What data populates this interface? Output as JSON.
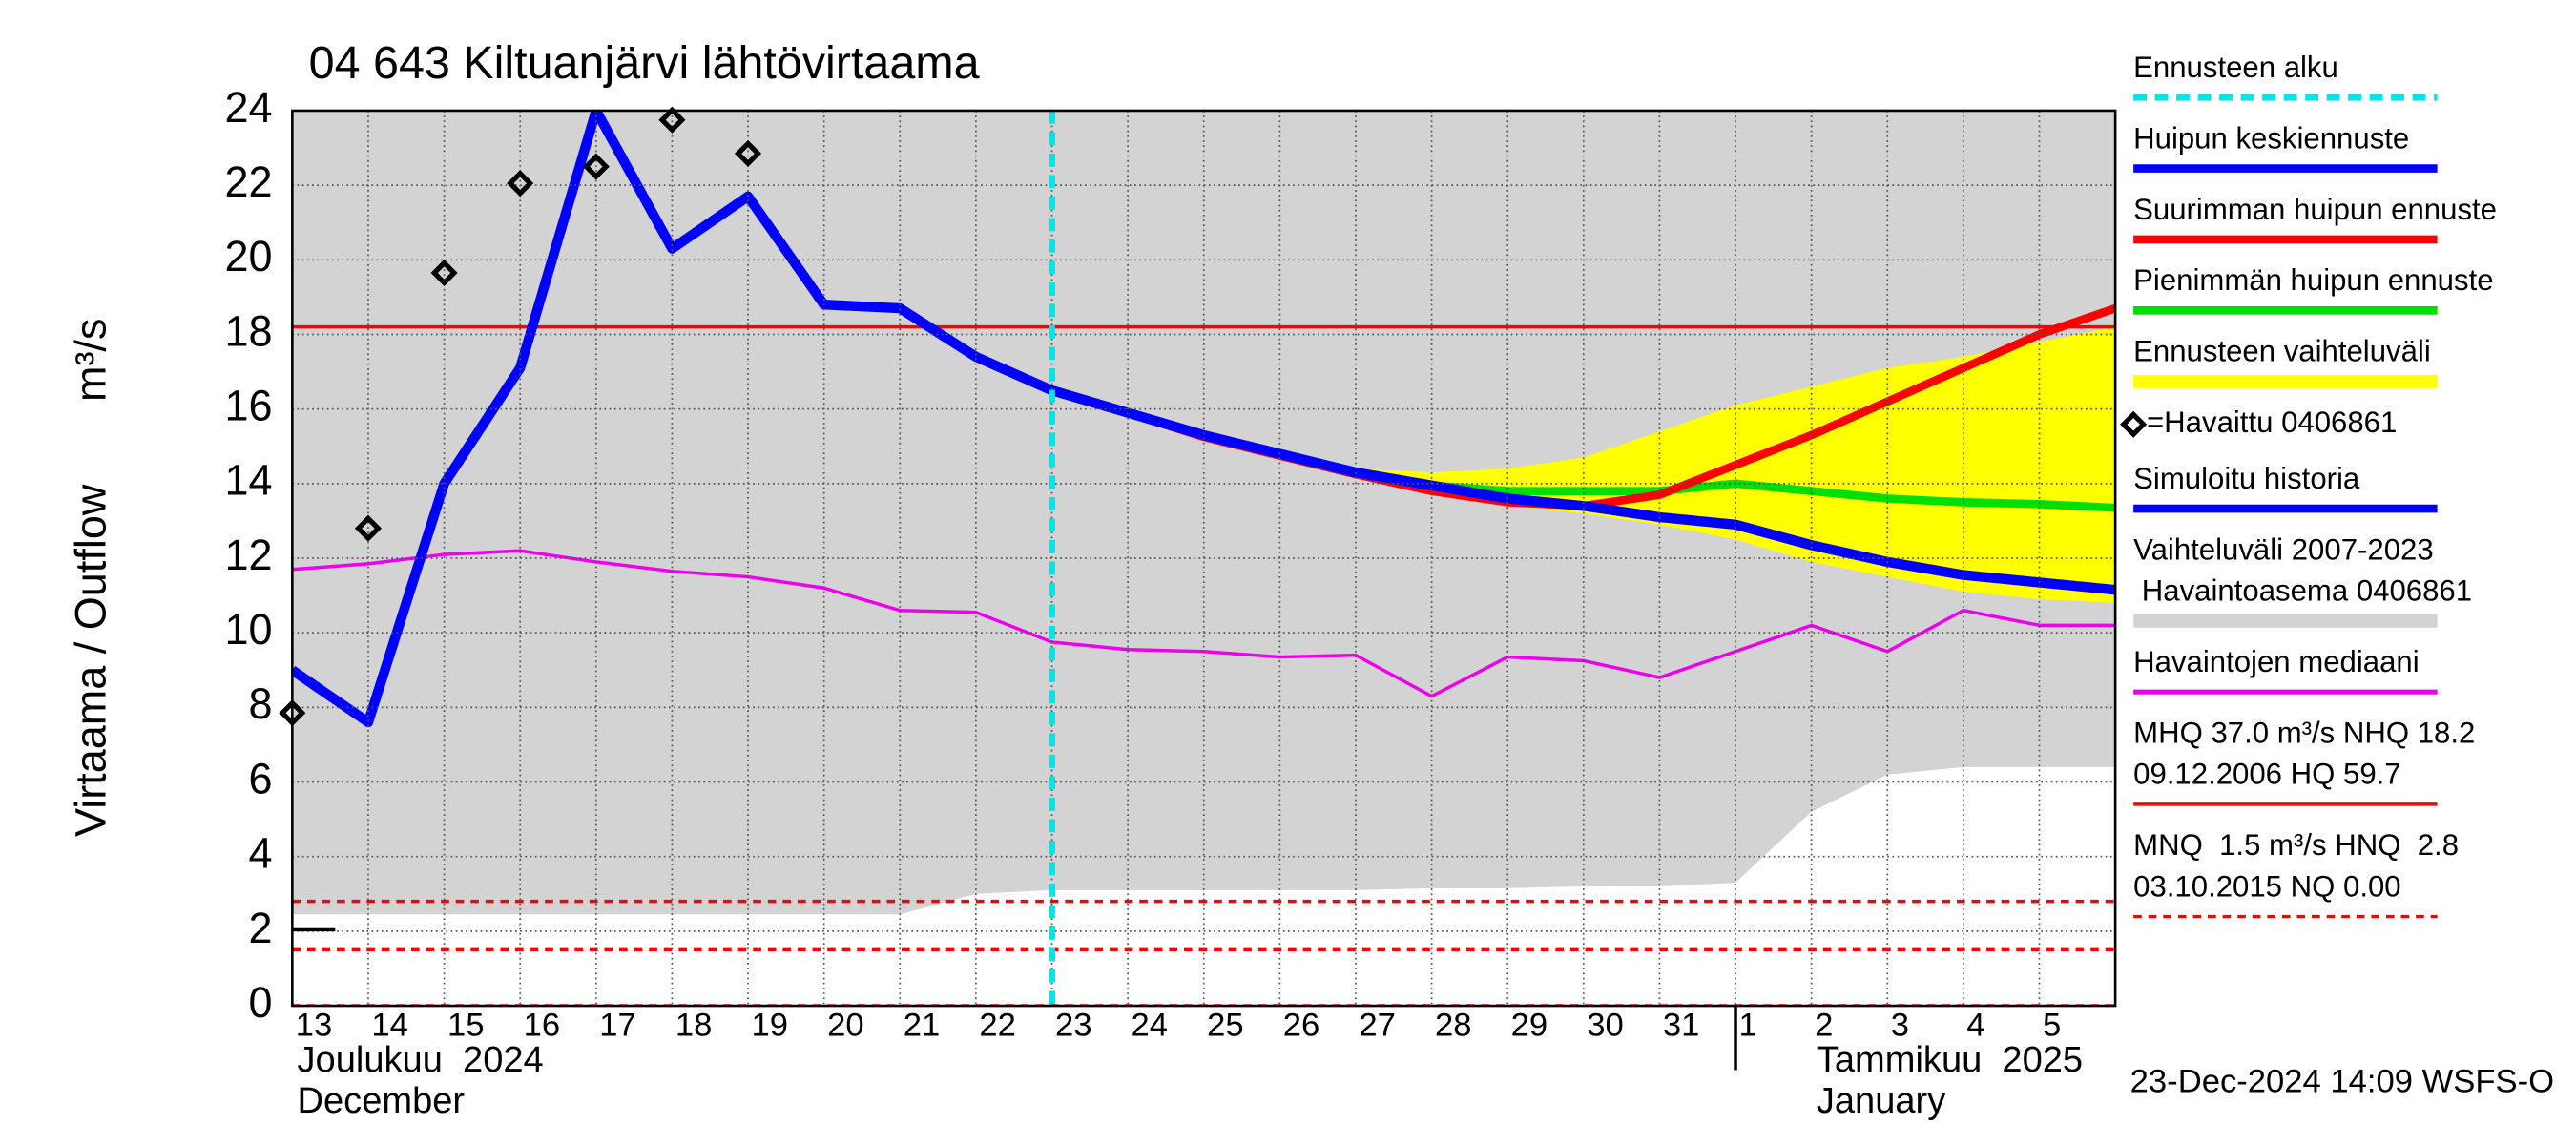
{
  "chart_data": {
    "type": "line",
    "title": "04 643 Kiltuanjärvi lähtövirtaama",
    "y_label": "Virtaama / Outflow",
    "y_unit": "m³/s",
    "categories": [
      "13",
      "14",
      "15",
      "16",
      "17",
      "18",
      "19",
      "20",
      "21",
      "22",
      "23",
      "24",
      "25",
      "26",
      "27",
      "28",
      "29",
      "30",
      "31",
      "1",
      "2",
      "3",
      "4",
      "5",
      null
    ],
    "month_labels": [
      [
        "Joulukuu  2024",
        "December"
      ],
      [
        "Tammikuu  2025",
        "January"
      ]
    ],
    "ylim": [
      0,
      24
    ],
    "yticks": [
      0,
      2,
      4,
      6,
      8,
      10,
      12,
      14,
      16,
      18,
      20,
      22,
      24
    ],
    "grid": true,
    "forecast_start": {
      "name": "Ennusteen alku",
      "color": "#00e5e5",
      "category": "23"
    },
    "series": [
      {
        "name": "Huipun keskiennuste",
        "kind": "line",
        "color": "#0000ff",
        "width": 6,
        "values": [
          null,
          null,
          null,
          null,
          null,
          null,
          null,
          null,
          null,
          null,
          16.5,
          15.9,
          15.3,
          14.8,
          14.3,
          13.95,
          13.6,
          13.4,
          13.1,
          12.9,
          12.35,
          11.9,
          11.55,
          11.35,
          11.15
        ]
      },
      {
        "name": "Suurimman huipun ennuste",
        "kind": "line",
        "color": "#ff0000",
        "width": 5,
        "values": [
          null,
          null,
          null,
          null,
          null,
          null,
          null,
          null,
          null,
          null,
          16.5,
          15.9,
          15.25,
          14.75,
          14.25,
          13.8,
          13.5,
          13.4,
          13.7,
          14.5,
          15.3,
          16.2,
          17.1,
          18.0,
          18.7
        ]
      },
      {
        "name": "Pienimmän huipun ennuste",
        "kind": "line",
        "color": "#00e000",
        "width": 5,
        "values": [
          null,
          null,
          null,
          null,
          null,
          null,
          null,
          null,
          null,
          null,
          16.5,
          15.9,
          15.3,
          14.8,
          14.3,
          13.95,
          13.8,
          13.8,
          13.8,
          14.0,
          13.8,
          13.6,
          13.5,
          13.45,
          13.35
        ]
      },
      {
        "name": "Ennusteen vaihteluväli",
        "kind": "band",
        "color": "#ffff00",
        "upper": [
          null,
          null,
          null,
          null,
          null,
          null,
          null,
          null,
          null,
          null,
          null,
          null,
          null,
          14.8,
          14.4,
          14.3,
          14.4,
          14.7,
          15.4,
          16.1,
          16.6,
          17.1,
          17.4,
          17.8,
          18.2
        ],
        "lower": [
          null,
          null,
          null,
          null,
          null,
          null,
          null,
          null,
          null,
          null,
          null,
          null,
          null,
          14.8,
          14.2,
          13.8,
          13.4,
          13.2,
          12.9,
          12.5,
          11.9,
          11.5,
          11.1,
          10.9,
          10.8
        ]
      },
      {
        "name": "=Havaittu 0406861",
        "kind": "markers",
        "color": "#000000",
        "values": [
          7.85,
          12.8,
          19.65,
          22.05,
          22.5,
          23.75,
          22.85,
          null,
          null,
          null,
          null,
          null,
          null,
          null,
          null,
          null,
          null,
          null,
          null,
          null,
          null,
          null,
          null,
          null,
          null
        ]
      },
      {
        "name": "Simuloitu historia",
        "kind": "line",
        "color": "#0000ff",
        "width": 6,
        "values": [
          9.0,
          7.6,
          14.0,
          17.1,
          24.0,
          20.3,
          21.7,
          18.8,
          18.7,
          17.4,
          16.5,
          null,
          null,
          null,
          null,
          null,
          null,
          null,
          null,
          null,
          null,
          null,
          null,
          null,
          null
        ]
      },
      {
        "name": [
          "Vaihteluväli 2007-2023",
          " Havaintoasema 0406861"
        ],
        "kind": "band",
        "color": "#d3d3d3",
        "upper": [
          24,
          24,
          24,
          24,
          24,
          24,
          24,
          24,
          24,
          24,
          24,
          24,
          24,
          24,
          24,
          24,
          24,
          24,
          24,
          24,
          24,
          24,
          24,
          24,
          24
        ],
        "lower": [
          2.45,
          2.45,
          2.45,
          2.45,
          2.45,
          2.45,
          2.45,
          2.45,
          2.45,
          3.0,
          3.1,
          3.1,
          3.1,
          3.1,
          3.1,
          3.15,
          3.15,
          3.2,
          3.2,
          3.3,
          5.2,
          6.2,
          6.4,
          6.4,
          6.4
        ]
      },
      {
        "name": "Havaintojen mediaani",
        "kind": "line",
        "color": "#ee00ee",
        "width": 2,
        "values": [
          11.7,
          11.85,
          12.1,
          12.2,
          11.9,
          11.65,
          11.5,
          11.2,
          10.6,
          10.55,
          9.75,
          9.55,
          9.5,
          9.35,
          9.4,
          8.3,
          9.35,
          9.25,
          8.8,
          9.5,
          10.2,
          9.5,
          10.6,
          10.2,
          10.2
        ]
      }
    ],
    "reference_lines": [
      {
        "name": [
          "MHQ 37.0 m³/s NHQ 18.2",
          "09.12.2006 HQ 59.7"
        ],
        "color": "#ff0000",
        "dashed": false,
        "values": [
          18.2
        ]
      },
      {
        "name": [
          "MNQ  1.5 m³/s HNQ  2.8",
          "03.10.2015 NQ 0.00"
        ],
        "color": "#ff0000",
        "dashed": true,
        "values": [
          2.8,
          1.5,
          0
        ]
      }
    ],
    "footer": "23-Dec-2024 14:09 WSFS-O"
  }
}
